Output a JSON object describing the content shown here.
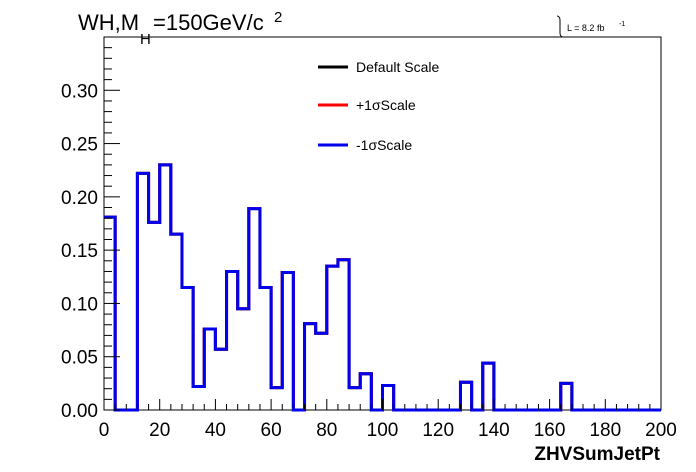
{
  "chart_data": {
    "type": "line",
    "title_main": "WH,M",
    "title_sub": "H",
    "title_rest": "=150GeV/c",
    "title_sup": "2",
    "lumi_text": "L = 8.2 fb",
    "lumi_sup": "-1",
    "xlabel": "ZHVSumJetPt",
    "ylabel": "",
    "xlim": [
      0,
      200
    ],
    "ylim": [
      0,
      0.35
    ],
    "x_ticks": [
      "0",
      "20",
      "40",
      "60",
      "80",
      "100",
      "120",
      "140",
      "160",
      "180",
      "200"
    ],
    "y_ticks": [
      "0.00",
      "0.05",
      "0.10",
      "0.15",
      "0.20",
      "0.25",
      "0.30"
    ],
    "bin_width": 4,
    "bin_edges_start": 0,
    "legend_position": "top-center",
    "series": [
      {
        "name": "Default Scale",
        "color": "#000000",
        "values": [
          0.181,
          0,
          0,
          0.222,
          0.176,
          0.23,
          0.165,
          0.115,
          0.022,
          0.076,
          0.057,
          0.13,
          0.095,
          0.189,
          0.115,
          0.021,
          0.129,
          0,
          0.081,
          0.072,
          0.135,
          0.141,
          0.021,
          0.034,
          0,
          0.023,
          0,
          0,
          0,
          0,
          0,
          0,
          0.026,
          0,
          0.044,
          0,
          0,
          0,
          0,
          0,
          0,
          0.025,
          0,
          0,
          0,
          0,
          0,
          0,
          0,
          0
        ]
      },
      {
        "name": "+1σScale",
        "color": "#ff0000",
        "values": [
          0.181,
          0,
          0,
          0.222,
          0.176,
          0.23,
          0.165,
          0.115,
          0.022,
          0.076,
          0.057,
          0.13,
          0.095,
          0.189,
          0.115,
          0.021,
          0.129,
          0,
          0.081,
          0.072,
          0.135,
          0.141,
          0.021,
          0.034,
          0,
          0.023,
          0,
          0,
          0,
          0,
          0,
          0,
          0.026,
          0,
          0.044,
          0,
          0,
          0,
          0,
          0,
          0,
          0.025,
          0,
          0,
          0,
          0,
          0,
          0,
          0,
          0
        ]
      },
      {
        "name": "-1σScale",
        "color": "#0000ee",
        "values": [
          0.181,
          0,
          0,
          0.222,
          0.176,
          0.23,
          0.165,
          0.115,
          0.022,
          0.076,
          0.057,
          0.13,
          0.095,
          0.189,
          0.115,
          0.021,
          0.129,
          0,
          0.081,
          0.072,
          0.135,
          0.141,
          0.021,
          0.034,
          0,
          0.023,
          0,
          0,
          0,
          0,
          0,
          0,
          0.026,
          0,
          0.044,
          0,
          0,
          0,
          0,
          0,
          0,
          0.025,
          0,
          0,
          0,
          0,
          0,
          0,
          0,
          0
        ]
      }
    ]
  }
}
